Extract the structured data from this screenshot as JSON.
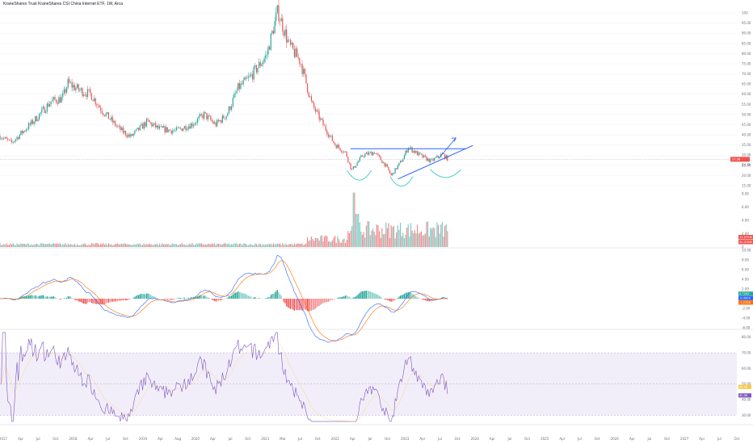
{
  "header": {
    "title": "KraneShares Trust KraneShares CSI China Internet ETF, 1W, Arca"
  },
  "colors": {
    "up": "#26a69a",
    "down": "#ef5350",
    "vol_up": "#80cbc4",
    "vol_down": "#f28b8c",
    "trend": "#2962ff",
    "cup": "#4dd0c1",
    "macd": "#2962ff",
    "signal": "#ff6d00",
    "rsi": "#7e57c2",
    "rsi_band": "#ede7f6",
    "grid": "#f0f3fa",
    "price_line": "#9598a1"
  },
  "chart_data": [
    {
      "type": "candlestick",
      "panel": "price",
      "ylim": [
        15,
        104
      ],
      "y_ticks": [
        "100",
        "95.00",
        "90.00",
        "85.00",
        "80.00",
        "75.00",
        "70.00",
        "65.00",
        "60.00",
        "55.00",
        "50.00",
        "45.00",
        "40.00",
        "35.00",
        "30.00",
        "25.00",
        "20.00",
        "15.00"
      ],
      "last_price": "27.98",
      "last_price_sub": "2d 4h",
      "close_path": [
        {
          "date": "2017-01",
          "close": 39.5
        },
        {
          "date": "2017-03",
          "close": 36.0
        },
        {
          "date": "2017-05",
          "close": 41.5
        },
        {
          "date": "2017-07",
          "close": 47.0
        },
        {
          "date": "2017-10",
          "close": 56.5
        },
        {
          "date": "2017-12",
          "close": 58.0
        },
        {
          "date": "2018-01",
          "close": 65.5
        },
        {
          "date": "2018-03",
          "close": 62.0
        },
        {
          "date": "2018-05",
          "close": 60.0
        },
        {
          "date": "2018-07",
          "close": 52.0
        },
        {
          "date": "2018-10",
          "close": 43.0
        },
        {
          "date": "2018-12",
          "close": 39.0
        },
        {
          "date": "2019-03",
          "close": 46.5
        },
        {
          "date": "2019-05",
          "close": 43.0
        },
        {
          "date": "2019-08",
          "close": 42.0
        },
        {
          "date": "2019-11",
          "close": 45.5
        },
        {
          "date": "2020-01",
          "close": 50.0
        },
        {
          "date": "2020-03",
          "close": 45.0
        },
        {
          "date": "2020-05",
          "close": 50.0
        },
        {
          "date": "2020-07",
          "close": 63.0
        },
        {
          "date": "2020-09",
          "close": 68.0
        },
        {
          "date": "2020-12",
          "close": 79.0
        },
        {
          "date": "2021-02",
          "close": 101.0
        },
        {
          "date": "2021-04",
          "close": 84.0
        },
        {
          "date": "2021-06",
          "close": 76.0
        },
        {
          "date": "2021-08",
          "close": 55.0
        },
        {
          "date": "2021-10",
          "close": 45.0
        },
        {
          "date": "2021-12",
          "close": 35.5
        },
        {
          "date": "2022-02",
          "close": 31.0
        },
        {
          "date": "2022-03",
          "close": 22.5
        },
        {
          "date": "2022-05",
          "close": 30.0
        },
        {
          "date": "2022-07",
          "close": 31.5
        },
        {
          "date": "2022-09",
          "close": 25.0
        },
        {
          "date": "2022-10",
          "close": 20.0
        },
        {
          "date": "2022-12",
          "close": 28.0
        },
        {
          "date": "2023-01",
          "close": 34.0
        },
        {
          "date": "2023-03",
          "close": 30.0
        },
        {
          "date": "2023-05",
          "close": 27.0
        },
        {
          "date": "2023-07",
          "close": 30.5
        },
        {
          "date": "2023-08",
          "close": 28.0
        }
      ],
      "annotations": [
        "horizontal-resistance-line",
        "rising-support-line",
        "breakout-arrow",
        "three-cup-arcs"
      ]
    },
    {
      "type": "bar",
      "panel": "volume",
      "y_ticks": [
        "8.00",
        "6.00",
        "4.00",
        "2.00",
        "0"
      ],
      "last_labels": [
        "15.075M",
        "20.376M"
      ]
    },
    {
      "type": "histogram-line",
      "panel": "macd",
      "y_ticks": [
        "10.00",
        "8.00",
        "6.00",
        "4.00",
        "2.00",
        "0",
        "-2.00",
        "-4.00",
        "-6.00"
      ],
      "last_labels": [
        "0.7262",
        "-0.4904",
        "-1.2158"
      ],
      "ylim": [
        -6,
        10
      ]
    },
    {
      "type": "line",
      "panel": "rsi",
      "y_ticks": [
        "80.00",
        "70.00",
        "60.00",
        "50.00",
        "40.00",
        "30.00"
      ],
      "band": [
        30,
        70
      ],
      "last_labels": [
        "48.05",
        "42.58"
      ],
      "ylim": [
        25,
        84
      ]
    }
  ],
  "x_axis": {
    "labels": [
      "2017",
      "Apr",
      "Jul",
      "Oct",
      "2018",
      "Apr",
      "Jul",
      "Oct",
      "2019",
      "Apr",
      "Aug",
      "2020",
      "Apr",
      "Jul",
      "Oct",
      "2021",
      "Mar",
      "Jul",
      "Oct",
      "2022",
      "Apr",
      "Jul",
      "Oct",
      "2023",
      "Apr",
      "Jul",
      "Oct",
      "2024",
      "Apr",
      "Jul",
      "Oct",
      "2025",
      "Apr",
      "Jul",
      "Oct",
      "2026",
      "Apr",
      "Jul",
      "Oct",
      "2027",
      "Apr",
      "Jul",
      "Oct"
    ]
  }
}
